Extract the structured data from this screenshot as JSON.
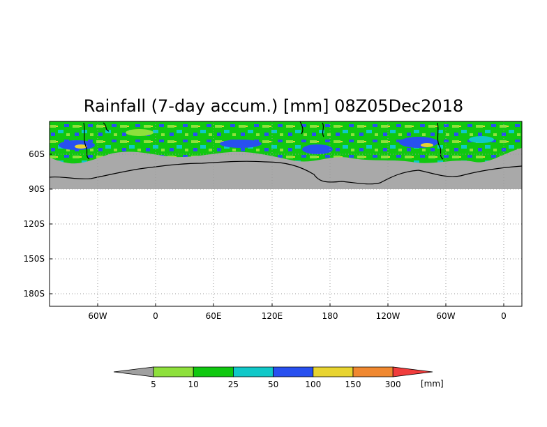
{
  "title": "Rainfall (7-day accum.) [mm] 08Z05Dec2018",
  "map": {
    "lon_labels": [
      "60W",
      "0",
      "60E",
      "120E",
      "180",
      "120W",
      "60W",
      "0"
    ],
    "lat_labels": [
      "60S",
      "90S",
      "120S",
      "150S",
      "180S"
    ],
    "land_color": "#a9a9a9",
    "no_data_color": "#ffffff"
  },
  "colorbar": {
    "labels": [
      "5",
      "10",
      "25",
      "50",
      "100",
      "150",
      "300"
    ],
    "unit": "[mm]",
    "colors": [
      "#a0a0a0",
      "#8ee03c",
      "#10c810",
      "#10c8c8",
      "#2850f0",
      "#e8d430",
      "#f08830",
      "#f03c3c"
    ]
  }
}
